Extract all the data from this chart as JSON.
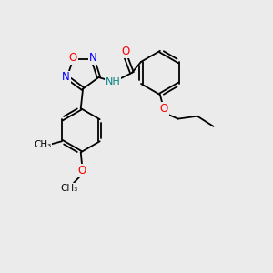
{
  "bg_color": "#ebebeb",
  "bond_color": "#000000",
  "atom_colors": {
    "O": "#ff0000",
    "N": "#0000ff",
    "NH": "#008080",
    "C": "#000000"
  },
  "lw": 1.3
}
